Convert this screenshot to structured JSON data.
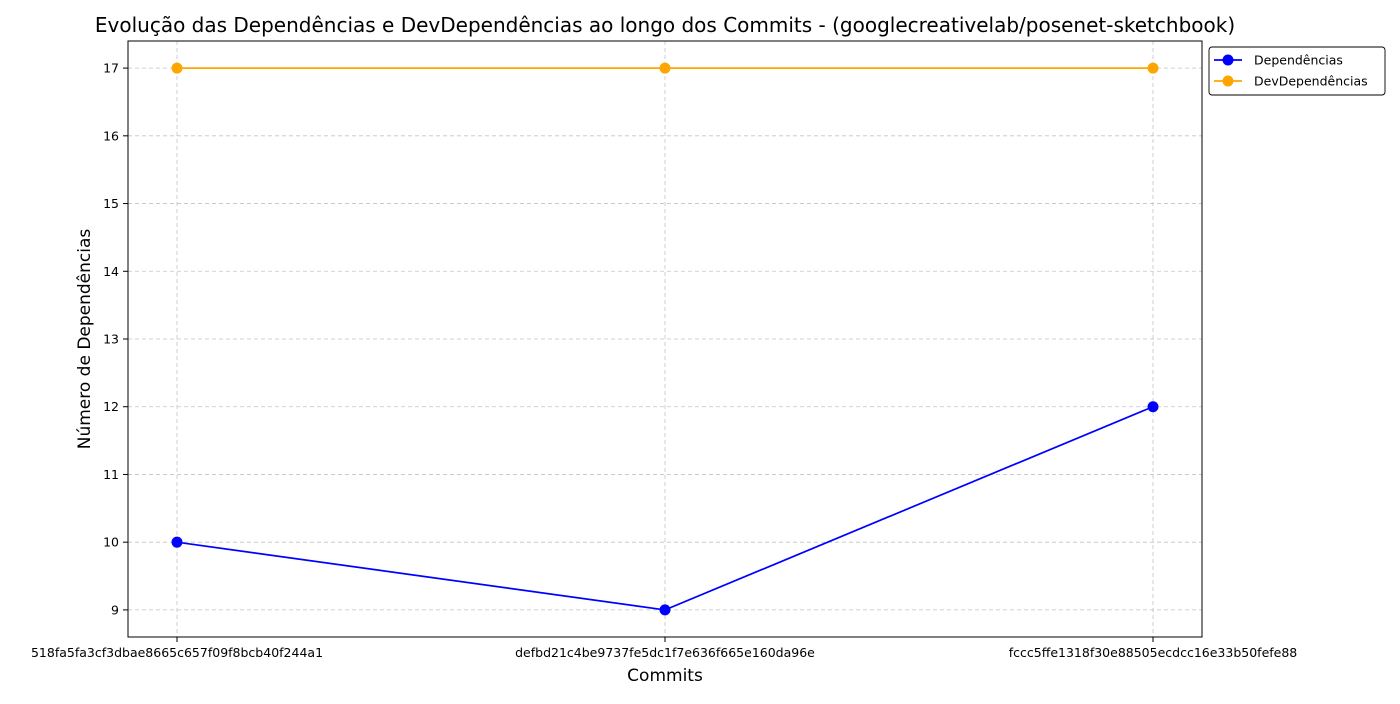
{
  "chart_data": {
    "type": "line",
    "title": "Evolução das Dependências e DevDependências ao longo dos Commits - (googlecreativelab/posenet-sketchbook)",
    "xlabel": "Commits",
    "ylabel": "Número de Dependências",
    "categories": [
      "518fa5fa3cf3dbae8665c657f09f8bcb40f244a1",
      "defbd21c4be9737fe5dc1f7e636f665e160da96e",
      "fccc5ffe1318f30e88505ecdcc16e33b50fefe88"
    ],
    "series": [
      {
        "name": "Dependências",
        "values": [
          10,
          9,
          12
        ],
        "color": "#0000ff",
        "marker": "circle"
      },
      {
        "name": "DevDependências",
        "values": [
          17,
          17,
          17
        ],
        "color": "#ffa500",
        "marker": "circle"
      }
    ],
    "yticks": [
      9,
      10,
      11,
      12,
      13,
      14,
      15,
      16,
      17
    ],
    "ylim": [
      8.6,
      17.4
    ],
    "grid": true,
    "legend_position": "upper-left outside plot (right side)"
  }
}
